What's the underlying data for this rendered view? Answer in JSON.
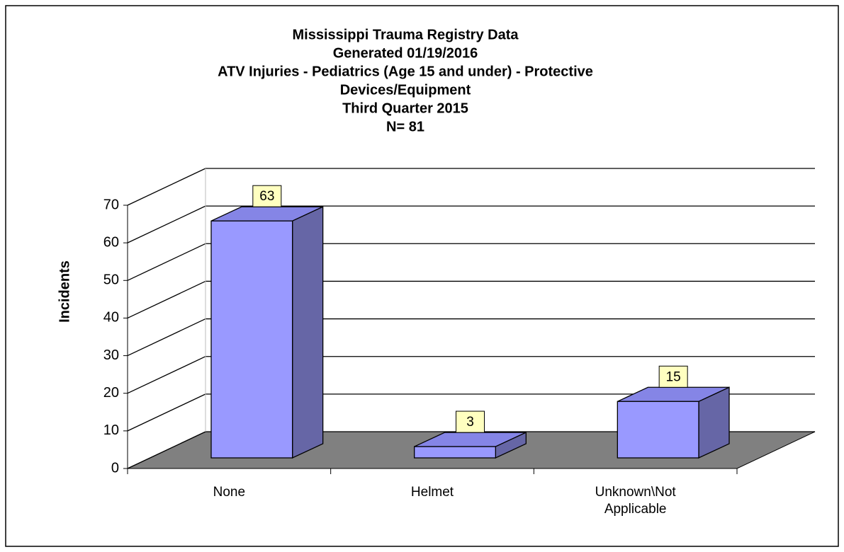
{
  "chart_data": {
    "type": "bar3d",
    "title": [
      "Mississippi Trauma Registry Data",
      "Generated 01/19/2016",
      "ATV Injuries - Pediatrics (Age 15 and under) - Protective",
      "Devices/Equipment",
      "Third Quarter 2015",
      "N= 81"
    ],
    "y_label": "Incidents",
    "categories": [
      "None",
      "Helmet",
      "Unknown\\Not Applicable"
    ],
    "values": [
      63,
      3,
      15
    ],
    "color": "#9999ff",
    "ylim": [
      0,
      70
    ],
    "yticks": [
      0,
      10,
      20,
      30,
      40,
      50,
      60,
      70
    ],
    "grid": true
  }
}
